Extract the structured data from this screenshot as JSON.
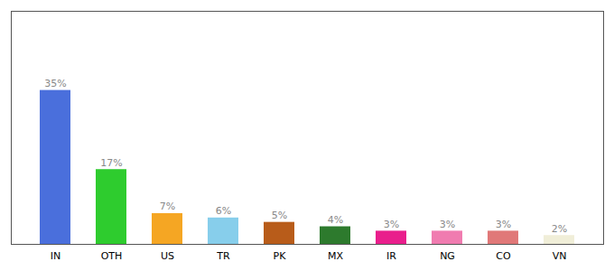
{
  "chart_data": {
    "type": "bar",
    "categories": [
      "IN",
      "OTH",
      "US",
      "TR",
      "PK",
      "MX",
      "IR",
      "NG",
      "CO",
      "VN"
    ],
    "values": [
      35,
      17,
      7,
      6,
      5,
      4,
      3,
      3,
      3,
      2
    ],
    "value_labels": [
      "35%",
      "17%",
      "7%",
      "6%",
      "5%",
      "4%",
      "3%",
      "3%",
      "3%",
      "2%"
    ],
    "colors": [
      "#4a6fdc",
      "#2ecc2e",
      "#f5a623",
      "#87ceeb",
      "#b85c1a",
      "#2d7a2d",
      "#e91e8c",
      "#f07cb0",
      "#e07878",
      "#f0eed8"
    ],
    "ylim": [
      0,
      53
    ],
    "data_labels": true,
    "tick_labels": "x"
  }
}
